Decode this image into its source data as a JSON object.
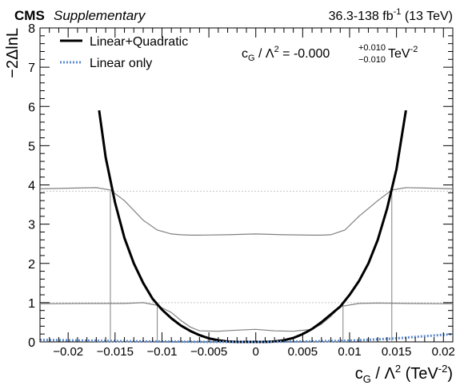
{
  "header": {
    "experiment": "CMS",
    "label": "Supplementary",
    "lumi": "36.3-138 fb",
    "lumi_exp": "-1",
    "energy": " (13 TeV)"
  },
  "annotation": {
    "lhs_c": "c",
    "lhs_sub": "G",
    "lhs_mid": " / Λ",
    "lhs_sup": "2",
    "rhs": " = -0.000",
    "up": "+0.010",
    "down": "−0.010",
    "unit": " TeV",
    "unit_exp": "-2"
  },
  "axes": {
    "x_c": "c",
    "x_sub": "G",
    "x_mid": " / Λ",
    "x_sup": "2",
    "x_unit": " (TeV",
    "x_unit_exp": "-2",
    "x_close": ")",
    "y_label": "−2ΔlnL"
  },
  "colors": {
    "lin_quad": "#000000",
    "lin_only": "#5b8bd0",
    "aux": "#808080",
    "ref": "#c8c8c8"
  },
  "chart_data": {
    "type": "line",
    "xlim": [
      -0.023,
      0.021
    ],
    "ylim": [
      0,
      8
    ],
    "x_ticks": [
      -0.02,
      -0.015,
      -0.01,
      -0.005,
      0,
      0.005,
      0.01,
      0.015,
      0.02
    ],
    "x_tick_labels": [
      "−0.02",
      "−0.015",
      "−0.01",
      "−0.005",
      "0",
      "0.005",
      "0.01",
      "0.015",
      "0.02"
    ],
    "y_ticks": [
      0,
      1,
      2,
      3,
      4,
      5,
      6,
      7,
      8
    ],
    "y_tick_labels": [
      "0",
      "1",
      "2",
      "3",
      "4",
      "5",
      "6",
      "7",
      "8"
    ],
    "reference_lines": [
      1,
      3.84
    ],
    "legend_position": "top-left",
    "series": [
      {
        "name": "Linear+Quadratic",
        "style": "solid",
        "x": [
          -0.0167,
          -0.016,
          -0.015,
          -0.014,
          -0.013,
          -0.012,
          -0.011,
          -0.01,
          -0.009,
          -0.008,
          -0.007,
          -0.006,
          -0.005,
          -0.004,
          -0.003,
          -0.002,
          -0.001,
          0,
          0.001,
          0.002,
          0.003,
          0.004,
          0.005,
          0.006,
          0.007,
          0.008,
          0.009,
          0.01,
          0.011,
          0.012,
          0.013,
          0.014,
          0.015,
          0.016
        ],
        "y": [
          5.9,
          4.7,
          3.55,
          2.65,
          2.0,
          1.5,
          1.1,
          0.82,
          0.6,
          0.42,
          0.28,
          0.17,
          0.09,
          0.04,
          0.01,
          0.0,
          0.0,
          0.0,
          0.0,
          0.01,
          0.04,
          0.1,
          0.2,
          0.33,
          0.5,
          0.7,
          0.9,
          1.2,
          1.55,
          2.0,
          2.6,
          3.4,
          4.4,
          5.9
        ]
      },
      {
        "name": "Linear only",
        "style": "dotted",
        "x": [
          -0.023,
          -0.02,
          -0.015,
          -0.01,
          -0.005,
          0,
          0.005,
          0.01,
          0.015,
          0.021
        ],
        "y": [
          0.05,
          0.04,
          0.02,
          0.01,
          0.0,
          0.0,
          0.01,
          0.03,
          0.09,
          0.2
        ]
      }
    ],
    "auxiliary_curves": [
      {
        "x": [
          -0.023,
          -0.019,
          -0.017,
          -0.0155,
          -0.014,
          -0.012,
          -0.0105,
          -0.009,
          -0.008,
          -0.007,
          -0.006,
          -0.003,
          0,
          0.003,
          0.006,
          0.007,
          0.008,
          0.0095,
          0.011,
          0.013,
          0.0145,
          0.016,
          0.018,
          0.021
        ],
        "y": [
          3.9,
          3.92,
          3.93,
          3.87,
          3.6,
          3.1,
          2.85,
          2.75,
          2.73,
          2.72,
          2.72,
          2.73,
          2.75,
          2.73,
          2.72,
          2.72,
          2.73,
          2.85,
          3.2,
          3.6,
          3.87,
          3.93,
          3.92,
          3.9
        ]
      },
      {
        "x": [
          -0.023,
          -0.018,
          -0.014,
          -0.012,
          -0.0105,
          -0.009,
          -0.008,
          -0.007,
          -0.006,
          -0.004,
          -0.002,
          0,
          0.002,
          0.004,
          0.006,
          0.007,
          0.008,
          0.009,
          0.011,
          0.013,
          0.016,
          0.021
        ],
        "y": [
          0.97,
          0.98,
          0.98,
          1.0,
          0.93,
          0.75,
          0.55,
          0.38,
          0.28,
          0.27,
          0.3,
          0.32,
          0.28,
          0.27,
          0.32,
          0.45,
          0.65,
          0.9,
          0.98,
          0.99,
          0.98,
          0.97
        ]
      }
    ],
    "interval_crossings": [
      {
        "x": -0.0155,
        "y": 3.84
      },
      {
        "x": -0.0105,
        "y": 1
      },
      {
        "x": 0.0093,
        "y": 1
      },
      {
        "x": 0.0145,
        "y": 3.84
      }
    ]
  }
}
